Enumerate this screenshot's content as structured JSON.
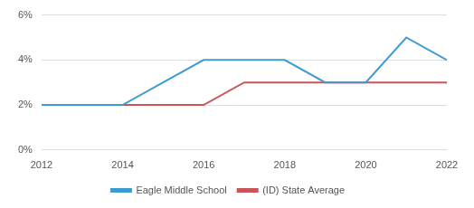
{
  "chart_data": {
    "type": "line",
    "x": [
      2012,
      2013,
      2014,
      2015,
      2016,
      2017,
      2018,
      2019,
      2020,
      2021,
      2022
    ],
    "series": [
      {
        "name": "Eagle Middle School",
        "color": "#3d9dd3",
        "values": [
          2,
          2,
          2,
          3,
          4,
          4,
          4,
          3,
          3,
          5,
          4
        ]
      },
      {
        "name": "(ID) State Average",
        "color": "#c9555a",
        "values": [
          2,
          2,
          2,
          2,
          2,
          3,
          3,
          3,
          3,
          3,
          3
        ]
      }
    ],
    "xlim": [
      2012,
      2022
    ],
    "xticks": [
      2012,
      2014,
      2016,
      2018,
      2020,
      2022
    ],
    "ylim": [
      0,
      6
    ],
    "yticks": [
      {
        "value": 0,
        "label": "0%"
      },
      {
        "value": 2,
        "label": "2%"
      },
      {
        "value": 4,
        "label": "4%"
      },
      {
        "value": 6,
        "label": "6%"
      }
    ],
    "grid": true,
    "legend": "bottom"
  }
}
